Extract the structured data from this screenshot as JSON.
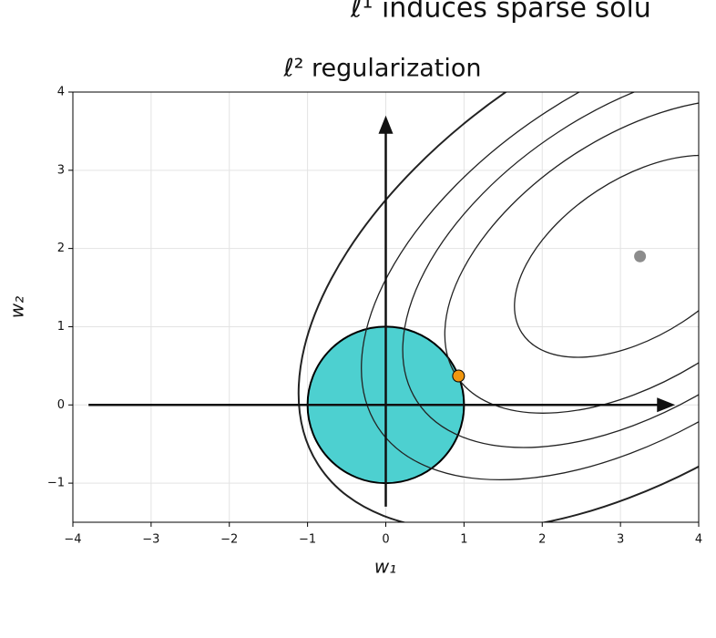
{
  "header_fragment": "ℓ¹ induces sparse solu",
  "chart_data": {
    "type": "contour",
    "title": "ℓ² regularization",
    "xlabel": "w₁",
    "ylabel": "w₂",
    "xlim": [
      -4,
      4
    ],
    "ylim": [
      -1.5,
      4
    ],
    "xticks": [
      {
        "value": -4,
        "label": "−4"
      },
      {
        "value": -3,
        "label": "−3"
      },
      {
        "value": -2,
        "label": "−2"
      },
      {
        "value": -1,
        "label": "−1"
      },
      0,
      1,
      2,
      3,
      4
    ],
    "yticks": [
      {
        "value": -1,
        "label": "−1"
      },
      0,
      1,
      2,
      3,
      4
    ],
    "grid": true,
    "constraint": {
      "center": [
        0,
        0
      ],
      "radius": 1,
      "color": "#4dd0d0"
    },
    "contours": {
      "center": [
        3.25,
        1.9
      ],
      "angle": 33,
      "semi_axes": [
        [
          1.8,
          1.0
        ],
        [
          2.8,
          1.55
        ],
        [
          3.4,
          1.9
        ],
        [
          4.0,
          2.2
        ],
        [
          4.9,
          2.7
        ]
      ],
      "color": "#222222"
    },
    "axes_arrows": {
      "horizontal": [
        -3.8,
        3.7
      ],
      "vertical": [
        -1.3,
        3.7
      ]
    },
    "points": [
      {
        "x": 0.93,
        "y": 0.37,
        "color": "#f0960f"
      },
      {
        "x": 3.25,
        "y": 1.9,
        "color": "#8c8c8c"
      }
    ]
  }
}
